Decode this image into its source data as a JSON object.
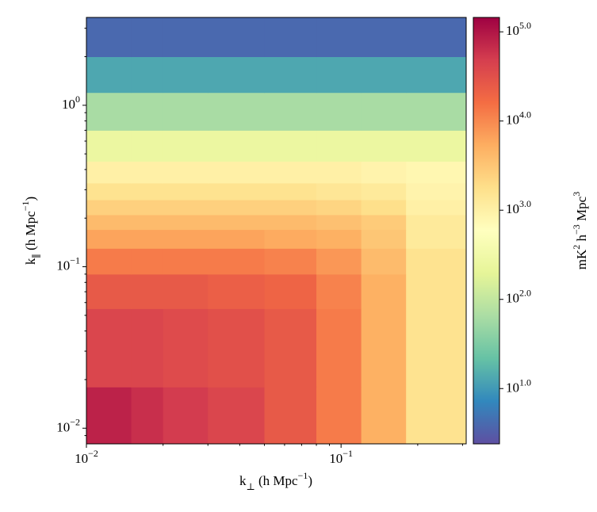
{
  "chart_data": {
    "type": "heatmap",
    "xlabel": "k_{⊥} (h Mpc^{−1})",
    "ylabel": "k_{∥} (h Mpc^{−1})",
    "colorbar_label": "mK^{2} h^{−3} Mpc^{3}",
    "xscale": "log",
    "yscale": "log",
    "zscale": "log",
    "colormap": [
      "#5e4fa2",
      "#3288bd",
      "#66c2a5",
      "#abdda4",
      "#e6f598",
      "#ffffbf",
      "#fee08b",
      "#fdae61",
      "#f46d43",
      "#d53e4f",
      "#9e0142"
    ],
    "xlim": [
      0.01,
      0.31
    ],
    "ylim": [
      0.008,
      3.5
    ],
    "zlim": [
      2.4,
      145000
    ],
    "xticks": [
      {
        "value": 0.01,
        "label": "10^{−2}"
      },
      {
        "value": 0.1,
        "label": "10^{−1}"
      }
    ],
    "yticks": [
      {
        "value": 0.01,
        "label": "10^{−2}"
      },
      {
        "value": 0.1,
        "label": "10^{−1}"
      },
      {
        "value": 1,
        "label": "10^{0}"
      }
    ],
    "zticks": [
      {
        "value": 10,
        "label": "10^{1.0}"
      },
      {
        "value": 100,
        "label": "10^{2.0}"
      },
      {
        "value": 1000,
        "label": "10^{3.0}"
      },
      {
        "value": 10000,
        "label": "10^{4.0}"
      },
      {
        "value": 100000,
        "label": "10^{5.0}"
      }
    ],
    "x_edges": [
      0.01,
      0.015,
      0.02,
      0.03,
      0.05,
      0.08,
      0.12,
      0.18,
      0.31
    ],
    "y_edges": [
      0.008,
      0.018,
      0.055,
      0.09,
      0.13,
      0.17,
      0.21,
      0.26,
      0.33,
      0.45,
      0.7,
      1.2,
      2.0,
      3.5
    ],
    "values": [
      [
        79400,
        63100,
        50100,
        39800,
        25100,
        12600,
        5000,
        1580
      ],
      [
        39800,
        39800,
        35500,
        31600,
        25100,
        12600,
        5000,
        1580
      ],
      [
        25100,
        25100,
        25100,
        22400,
        20000,
        11200,
        5000,
        1580
      ],
      [
        12600,
        12600,
        12600,
        12600,
        11200,
        7940,
        3980,
        1580
      ],
      [
        6310,
        6310,
        6310,
        6310,
        5620,
        5010,
        3160,
        1260
      ],
      [
        3980,
        3980,
        3980,
        3980,
        3980,
        3550,
        2820,
        1260
      ],
      [
        2510,
        2510,
        2510,
        2510,
        2510,
        2240,
        1780,
        1000
      ],
      [
        1580,
        1580,
        1580,
        1580,
        1580,
        1410,
        1260,
        891
      ],
      [
        1000,
        1000,
        1000,
        1000,
        1000,
        1000,
        891,
        794
      ],
      [
        251,
        251,
        251,
        251,
        251,
        251,
        251,
        251
      ],
      [
        63,
        63,
        63,
        63,
        63,
        63,
        63,
        63
      ],
      [
        13,
        13,
        13,
        13,
        13,
        13,
        13,
        13
      ],
      [
        4,
        4,
        4,
        4,
        4,
        4,
        4,
        4
      ]
    ]
  }
}
